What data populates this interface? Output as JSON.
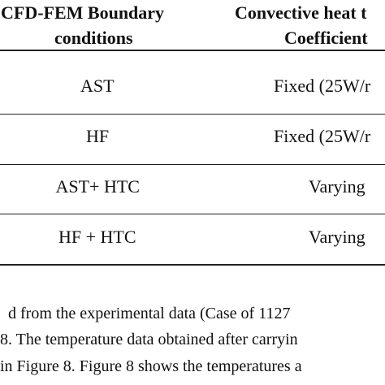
{
  "table": {
    "header": [
      [
        "CFD-FEM Boundary",
        "conditions"
      ],
      [
        "Convective heat t",
        "Coefficient"
      ]
    ],
    "rows": [
      [
        "AST",
        "Fixed (25W/r"
      ],
      [
        "HF",
        "Fixed (25W/r"
      ],
      [
        "AST+ HTC",
        "Varying"
      ],
      [
        "HF + HTC",
        "Varying"
      ]
    ]
  },
  "paragraph": {
    "lines": [
      "d from the experimental data (Case of 1127",
      "8. The temperature data obtained after carryin",
      "in Figure 8. Figure 8 shows the temperatures a"
    ]
  }
}
